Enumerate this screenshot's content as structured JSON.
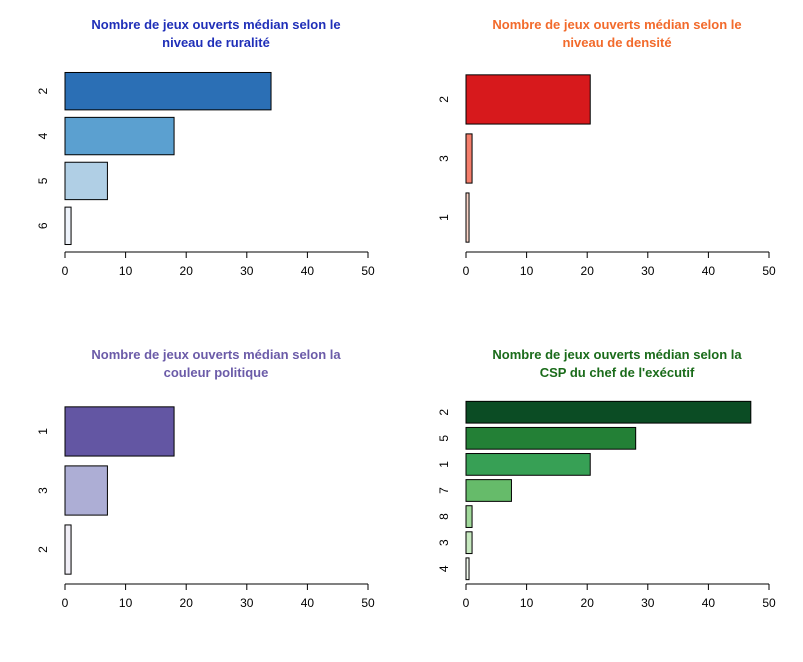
{
  "chart_data": [
    {
      "type": "bar",
      "orientation": "horizontal",
      "title_lines": [
        "Nombre de jeux ouverts médian selon le",
        "niveau de ruralité"
      ],
      "title_color": "#1F2FB8",
      "categories": [
        "2",
        "4",
        "5",
        "6"
      ],
      "values": [
        34,
        18,
        7,
        1
      ],
      "colors": [
        "#2B6FB5",
        "#5BA0D0",
        "#B0CFE5",
        "#EEF3FB"
      ],
      "xlim": [
        0,
        50
      ],
      "xticks": [
        "0",
        "10",
        "20",
        "30",
        "40",
        "50"
      ]
    },
    {
      "type": "bar",
      "orientation": "horizontal",
      "title_lines": [
        "Nombre de jeux ouverts médian selon le",
        "niveau de densité"
      ],
      "title_color": "#F26A2B",
      "categories": [
        "2",
        "3",
        "1"
      ],
      "values": [
        20.5,
        1,
        0.5
      ],
      "colors": [
        "#D7191C",
        "#F47E6B",
        "#FBD5C8"
      ],
      "xlim": [
        0,
        50
      ],
      "xticks": [
        "0",
        "10",
        "20",
        "30",
        "40",
        "50"
      ]
    },
    {
      "type": "bar",
      "orientation": "horizontal",
      "title_lines": [
        "Nombre de jeux ouverts médian selon la",
        "couleur politique"
      ],
      "title_color": "#6B5BA8",
      "categories": [
        "1",
        "3",
        "2"
      ],
      "values": [
        18,
        7,
        1
      ],
      "colors": [
        "#6356A3",
        "#ADAED5",
        "#F0EEF6"
      ],
      "xlim": [
        0,
        50
      ],
      "xticks": [
        "0",
        "10",
        "20",
        "30",
        "40",
        "50"
      ]
    },
    {
      "type": "bar",
      "orientation": "horizontal",
      "title_lines": [
        "Nombre de jeux ouverts médian selon la",
        "CSP du chef de l'exécutif"
      ],
      "title_color": "#1A6B1A",
      "categories": [
        "2",
        "5",
        "1",
        "7",
        "8",
        "3",
        "4"
      ],
      "values": [
        47,
        28,
        20.5,
        7.5,
        1,
        1,
        0.5
      ],
      "colors": [
        "#0B4C24",
        "#238036",
        "#37A055",
        "#66BB6A",
        "#A1D99B",
        "#C7E9C0",
        "#F1F9EE"
      ],
      "xlim": [
        0,
        50
      ],
      "xticks": [
        "0",
        "10",
        "20",
        "30",
        "40",
        "50"
      ]
    }
  ]
}
